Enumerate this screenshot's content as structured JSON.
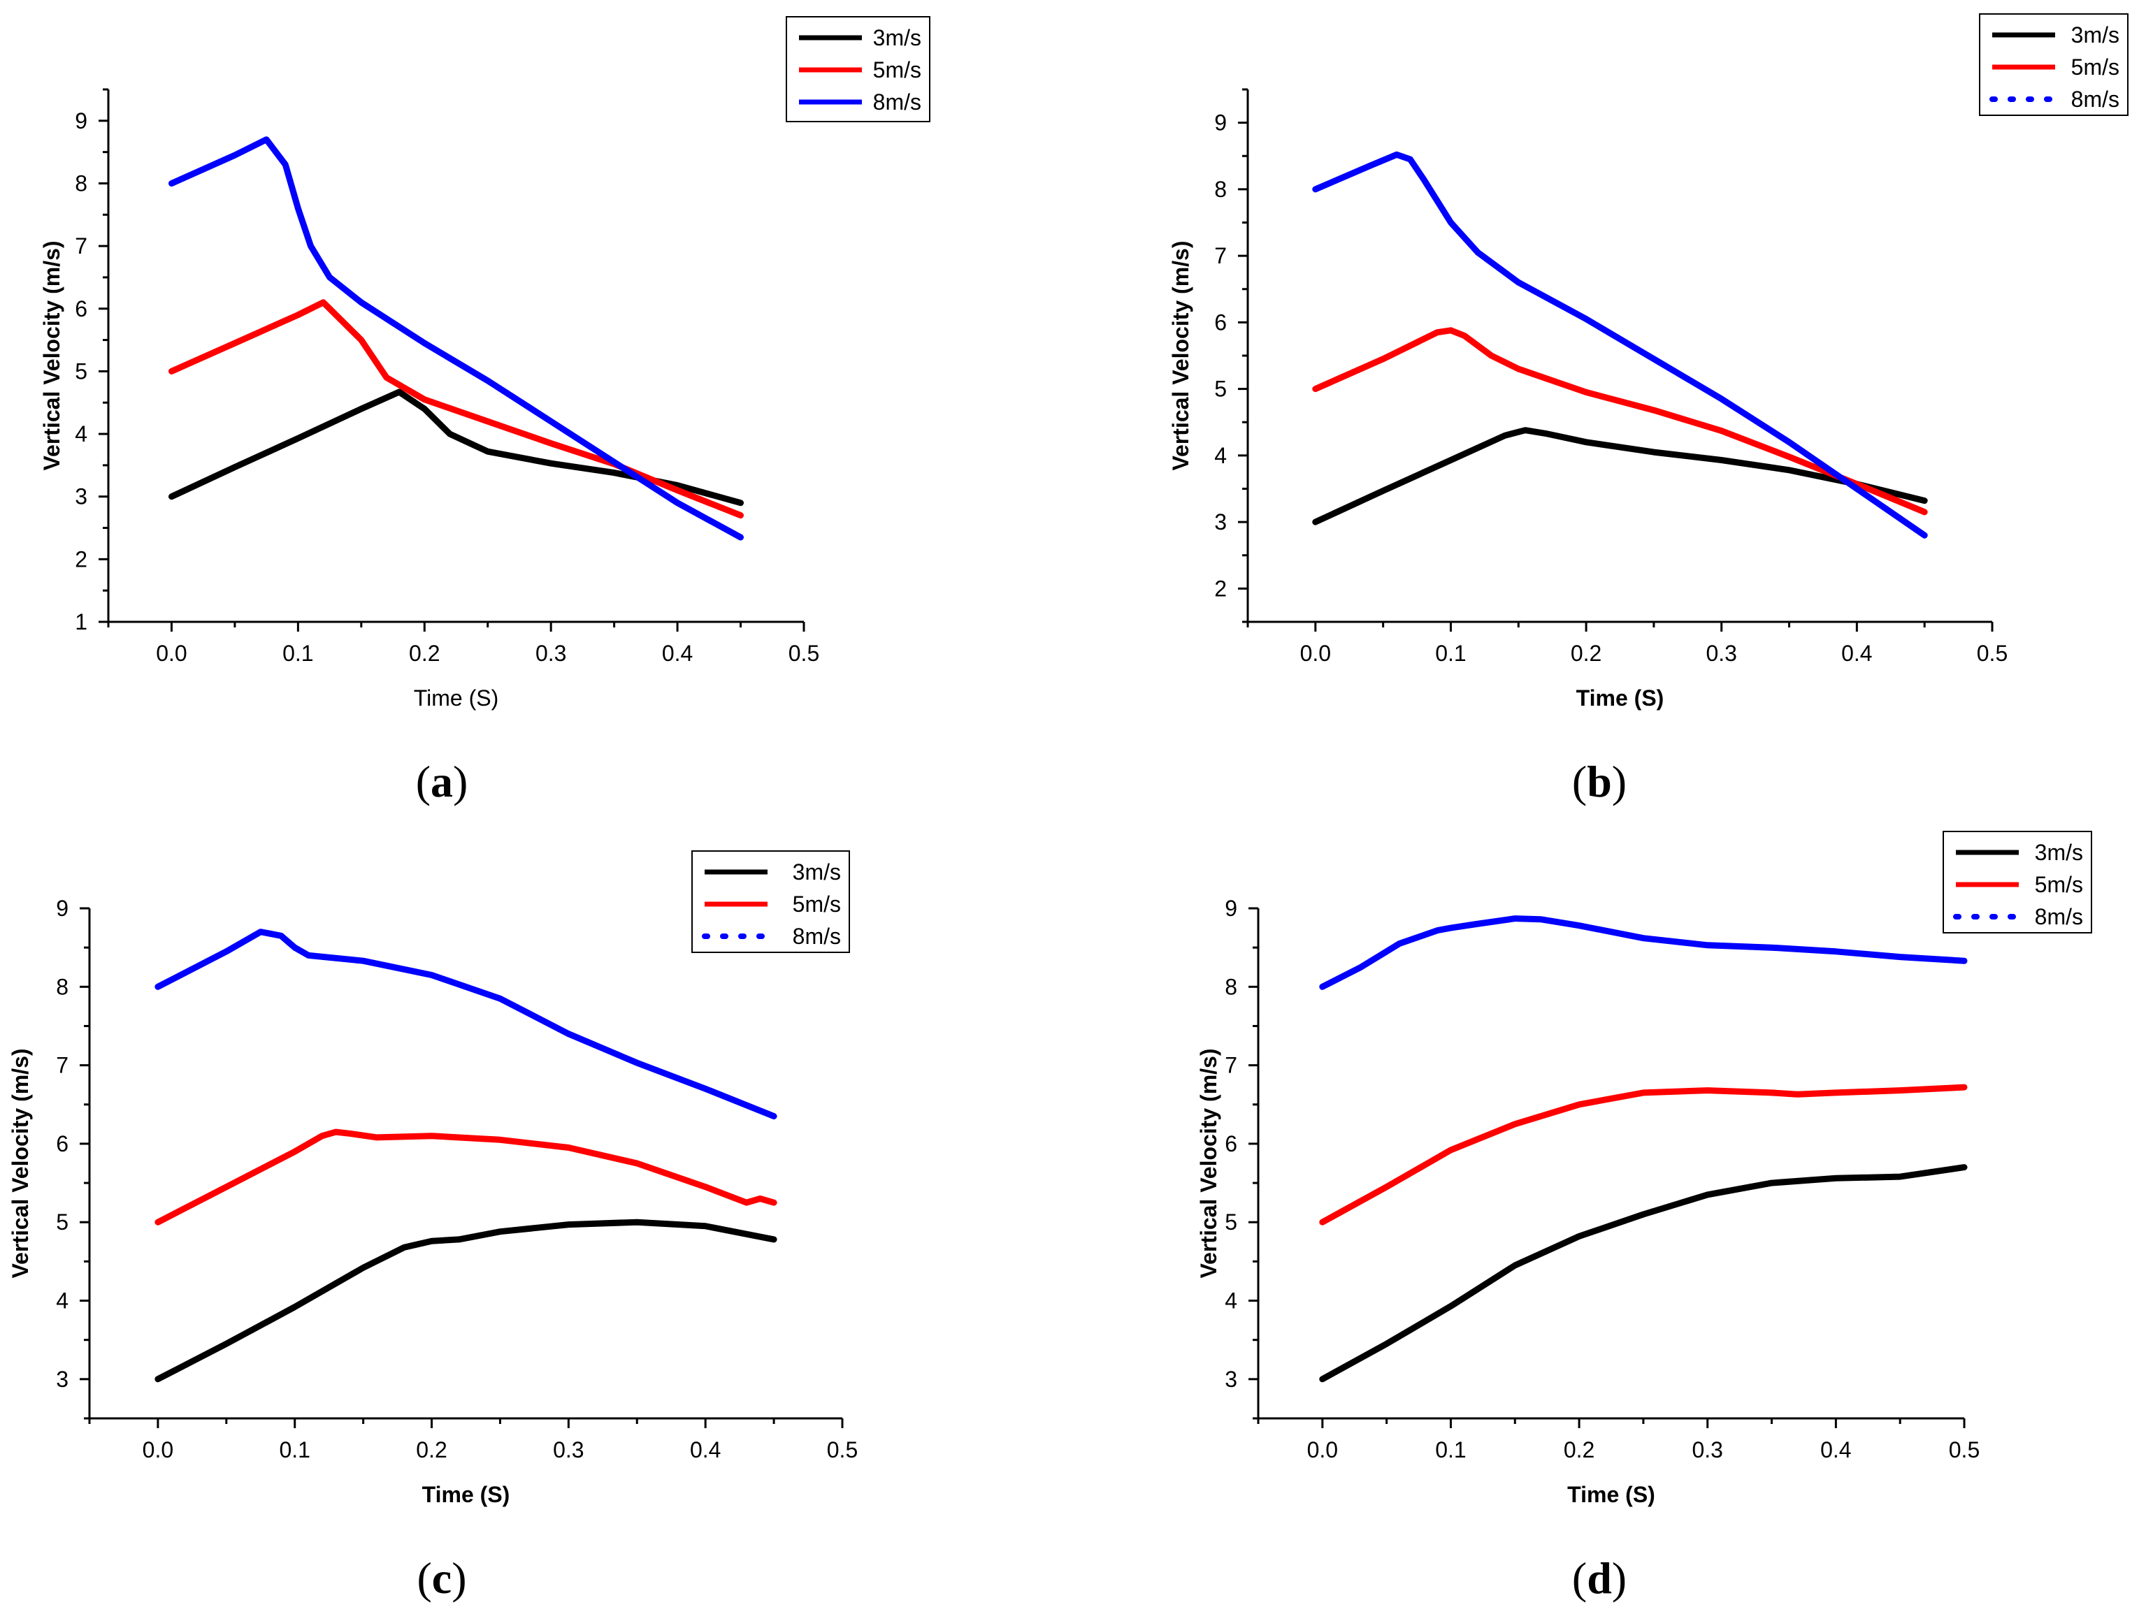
{
  "chart_data": [
    {
      "id": "a",
      "type": "line",
      "caption": {
        "open": "(",
        "letter": "a",
        "close": ")"
      },
      "xlabel": "Time  (S)",
      "ylabel": "Vertical Velocity  (m/s)",
      "xlim": [
        -0.05,
        0.5
      ],
      "ylim": [
        1,
        9.5
      ],
      "xticks": [
        "0.0",
        "0.1",
        "0.2",
        "0.3",
        "0.4",
        "0.5"
      ],
      "xtick_values": [
        0,
        0.1,
        0.2,
        0.3,
        0.4,
        0.5
      ],
      "yticks": [
        "1",
        "2",
        "3",
        "4",
        "5",
        "6",
        "7",
        "8",
        "9"
      ],
      "ytick_values": [
        1,
        2,
        3,
        4,
        5,
        6,
        7,
        8,
        9
      ],
      "legend_position": "top-right",
      "series": [
        {
          "name": "3m/s",
          "color": "#000000",
          "style": "solid",
          "x": [
            0,
            0.05,
            0.1,
            0.15,
            0.18,
            0.2,
            0.22,
            0.25,
            0.3,
            0.35,
            0.4,
            0.45
          ],
          "y": [
            3.0,
            3.47,
            3.93,
            4.4,
            4.67,
            4.4,
            4.0,
            3.72,
            3.53,
            3.38,
            3.18,
            2.9
          ]
        },
        {
          "name": "5m/s",
          "color": "#ff0000",
          "style": "solid",
          "x": [
            0,
            0.05,
            0.1,
            0.12,
            0.15,
            0.17,
            0.2,
            0.25,
            0.3,
            0.35,
            0.4,
            0.45
          ],
          "y": [
            5.0,
            5.45,
            5.9,
            6.1,
            5.5,
            4.9,
            4.55,
            4.2,
            3.85,
            3.52,
            3.1,
            2.7
          ]
        },
        {
          "name": "8m/s",
          "color": "#0000ff",
          "style": "solid",
          "x": [
            0,
            0.05,
            0.075,
            0.09,
            0.1,
            0.11,
            0.125,
            0.15,
            0.2,
            0.25,
            0.3,
            0.35,
            0.4,
            0.45
          ],
          "y": [
            8.0,
            8.45,
            8.7,
            8.3,
            7.6,
            7.0,
            6.5,
            6.1,
            5.45,
            4.85,
            4.2,
            3.55,
            2.9,
            2.35
          ]
        }
      ]
    },
    {
      "id": "b",
      "type": "line",
      "caption": {
        "open": "(",
        "letter": "b",
        "close": ")"
      },
      "xlabel": "Time (S)",
      "ylabel": "Vertical Velocity  (m/s)",
      "xlim": [
        -0.05,
        0.5
      ],
      "ylim": [
        1.5,
        9.5
      ],
      "xticks": [
        "0.0",
        "0.1",
        "0.2",
        "0.3",
        "0.4",
        "0.5"
      ],
      "xtick_values": [
        0,
        0.1,
        0.2,
        0.3,
        0.4,
        0.5
      ],
      "yticks": [
        "2",
        "3",
        "4",
        "5",
        "6",
        "7",
        "8",
        "9"
      ],
      "ytick_values": [
        2,
        3,
        4,
        5,
        6,
        7,
        8,
        9
      ],
      "legend_position": "top-right",
      "series": [
        {
          "name": "3m/s",
          "color": "#000000",
          "style": "solid",
          "x": [
            0,
            0.05,
            0.1,
            0.14,
            0.155,
            0.17,
            0.2,
            0.25,
            0.3,
            0.35,
            0.4,
            0.45
          ],
          "y": [
            3.0,
            3.47,
            3.93,
            4.3,
            4.38,
            4.33,
            4.2,
            4.05,
            3.93,
            3.78,
            3.57,
            3.32
          ]
        },
        {
          "name": "5m/s",
          "color": "#ff0000",
          "style": "solid",
          "x": [
            0,
            0.05,
            0.09,
            0.1,
            0.11,
            0.13,
            0.15,
            0.2,
            0.25,
            0.3,
            0.35,
            0.4,
            0.45
          ],
          "y": [
            5.0,
            5.45,
            5.85,
            5.88,
            5.8,
            5.5,
            5.3,
            4.95,
            4.68,
            4.37,
            3.98,
            3.57,
            3.15
          ]
        },
        {
          "name": "8m/s",
          "color": "#0000ff",
          "style": "dotted",
          "x": [
            0,
            0.04,
            0.06,
            0.07,
            0.08,
            0.1,
            0.12,
            0.15,
            0.2,
            0.25,
            0.3,
            0.35,
            0.4,
            0.45
          ],
          "y": [
            8.0,
            8.35,
            8.52,
            8.45,
            8.15,
            7.5,
            7.05,
            6.6,
            6.05,
            5.45,
            4.85,
            4.2,
            3.5,
            2.8
          ]
        }
      ]
    },
    {
      "id": "c",
      "type": "line",
      "caption": {
        "open": "(",
        "letter": "c",
        "close": ")"
      },
      "xlabel": "Time (S)",
      "ylabel": "Vertical Velocity (m/s)",
      "xlim": [
        -0.05,
        0.5
      ],
      "ylim": [
        2.5,
        9
      ],
      "xticks": [
        "0.0",
        "0.1",
        "0.2",
        "0.3",
        "0.4",
        "0.5"
      ],
      "xtick_values": [
        0,
        0.1,
        0.2,
        0.3,
        0.4,
        0.5
      ],
      "yticks": [
        "3",
        "4",
        "5",
        "6",
        "7",
        "8",
        "9"
      ],
      "ytick_values": [
        3,
        4,
        5,
        6,
        7,
        8,
        9
      ],
      "legend_position": "top-right",
      "series": [
        {
          "name": "3m/s",
          "color": "#000000",
          "style": "solid",
          "x": [
            0,
            0.05,
            0.1,
            0.15,
            0.18,
            0.2,
            0.22,
            0.25,
            0.3,
            0.35,
            0.4,
            0.45
          ],
          "y": [
            3.0,
            3.45,
            3.92,
            4.42,
            4.68,
            4.76,
            4.78,
            4.88,
            4.97,
            5.0,
            4.95,
            4.78
          ]
        },
        {
          "name": "5m/s",
          "color": "#ff0000",
          "style": "solid",
          "x": [
            0,
            0.05,
            0.1,
            0.12,
            0.13,
            0.14,
            0.16,
            0.2,
            0.25,
            0.3,
            0.35,
            0.4,
            0.43,
            0.44,
            0.45
          ],
          "y": [
            5.0,
            5.45,
            5.9,
            6.1,
            6.15,
            6.13,
            6.08,
            6.1,
            6.05,
            5.95,
            5.75,
            5.45,
            5.25,
            5.3,
            5.25
          ]
        },
        {
          "name": "8m/s",
          "color": "#0000ff",
          "style": "dotted",
          "x": [
            0,
            0.05,
            0.075,
            0.09,
            0.1,
            0.11,
            0.15,
            0.2,
            0.25,
            0.3,
            0.35,
            0.4,
            0.45
          ],
          "y": [
            8.0,
            8.45,
            8.7,
            8.65,
            8.5,
            8.4,
            8.33,
            8.15,
            7.85,
            7.4,
            7.03,
            6.7,
            6.35
          ]
        }
      ]
    },
    {
      "id": "d",
      "type": "line",
      "caption": {
        "open": "(",
        "letter": "d",
        "close": ")"
      },
      "xlabel": "Time (S)",
      "ylabel": "Vertical Velocity (m/s)",
      "xlim": [
        -0.05,
        0.5
      ],
      "ylim": [
        2.5,
        9
      ],
      "xticks": [
        "0.0",
        "0.1",
        "0.2",
        "0.3",
        "0.4",
        "0.5"
      ],
      "xtick_values": [
        0,
        0.1,
        0.2,
        0.3,
        0.4,
        0.5
      ],
      "yticks": [
        "3",
        "4",
        "5",
        "6",
        "7",
        "8",
        "9"
      ],
      "ytick_values": [
        3,
        4,
        5,
        6,
        7,
        8,
        9
      ],
      "legend_position": "top-right",
      "series": [
        {
          "name": "3m/s",
          "color": "#000000",
          "style": "solid",
          "x": [
            0,
            0.05,
            0.1,
            0.15,
            0.2,
            0.25,
            0.3,
            0.35,
            0.4,
            0.45,
            0.5
          ],
          "y": [
            3.0,
            3.45,
            3.93,
            4.45,
            4.82,
            5.1,
            5.35,
            5.5,
            5.56,
            5.58,
            5.7
          ]
        },
        {
          "name": "5m/s",
          "color": "#ff0000",
          "style": "solid",
          "x": [
            0,
            0.05,
            0.1,
            0.15,
            0.2,
            0.25,
            0.3,
            0.35,
            0.37,
            0.4,
            0.45,
            0.5
          ],
          "y": [
            5.0,
            5.45,
            5.92,
            6.25,
            6.5,
            6.65,
            6.68,
            6.65,
            6.63,
            6.65,
            6.68,
            6.72
          ]
        },
        {
          "name": "8m/s",
          "color": "#0000ff",
          "style": "dotted",
          "x": [
            0,
            0.03,
            0.06,
            0.09,
            0.1,
            0.12,
            0.15,
            0.17,
            0.2,
            0.25,
            0.3,
            0.35,
            0.4,
            0.45,
            0.5
          ],
          "y": [
            8.0,
            8.25,
            8.55,
            8.72,
            8.75,
            8.8,
            8.87,
            8.86,
            8.78,
            8.62,
            8.53,
            8.5,
            8.45,
            8.38,
            8.33
          ]
        }
      ]
    }
  ]
}
